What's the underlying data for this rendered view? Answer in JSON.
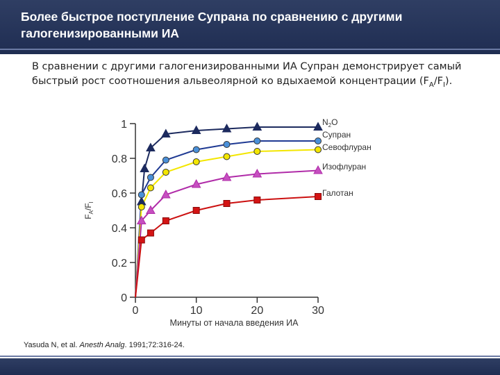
{
  "header": {
    "title": "Более быстрое поступление Супрана по сравнению с другими галогенизированными ИА"
  },
  "intro": {
    "text_part1": "В сравнении с другими галогенизированными ИА Супран демонстрирует самый быстрый рост соотношения альвеолярной ко вдыхаемой концентрации (F",
    "sub_a": "A",
    "slash": "/F",
    "sub_i": "I",
    "text_end": ")."
  },
  "citation": {
    "authors": "Yasuda N, et al. ",
    "journal": "Anesth Analg",
    "rest": ". 1991;72:316-24."
  },
  "chart_data": {
    "type": "line",
    "xlabel": "Минуты от начала введения ИА",
    "ylabel": "FA/FI",
    "ylabel_main": "F",
    "ylabel_sub1": "A",
    "ylabel_mid": "/F",
    "ylabel_sub2": "I",
    "xlim": [
      0,
      30
    ],
    "ylim": [
      0,
      1
    ],
    "x_ticks": [
      0,
      10,
      20,
      30
    ],
    "x_tick_labels": [
      "0",
      "10",
      "20",
      "30"
    ],
    "y_ticks": [
      0,
      0.2,
      0.4,
      0.6,
      0.8,
      1
    ],
    "y_tick_labels": [
      "0",
      "0.2",
      "0.4",
      "0.6",
      "0.8",
      "1"
    ],
    "grid": false,
    "legend_placement": "right",
    "series": [
      {
        "name": "N2O",
        "label_main": "N",
        "label_sub": "2",
        "label_tail": "O",
        "marker": "triangle",
        "color": "#1c2a5e",
        "marker_fill": "#1c2a5e",
        "x": [
          1,
          1.5,
          2.5,
          5,
          10,
          15,
          20,
          30
        ],
        "y": [
          0.55,
          0.74,
          0.86,
          0.94,
          0.96,
          0.97,
          0.98,
          0.98
        ]
      },
      {
        "name": "Супран",
        "label_main": "Супран",
        "label_sub": "",
        "label_tail": "",
        "marker": "circle",
        "color": "#1f3a93",
        "marker_fill": "#4a90d9",
        "x": [
          1,
          2.5,
          5,
          10,
          15,
          20,
          30
        ],
        "y": [
          0.59,
          0.69,
          0.79,
          0.85,
          0.88,
          0.9,
          0.9
        ]
      },
      {
        "name": "Севофлуран",
        "label_main": "Севофлуран",
        "label_sub": "",
        "label_tail": "",
        "marker": "circle",
        "color": "#f3e600",
        "marker_fill": "#f3e600",
        "x": [
          1,
          2.5,
          5,
          10,
          15,
          20,
          30
        ],
        "y": [
          0.52,
          0.63,
          0.72,
          0.78,
          0.81,
          0.84,
          0.85
        ]
      },
      {
        "name": "Изофлуран",
        "label_main": "Изофлуран",
        "label_sub": "",
        "label_tail": "",
        "marker": "triangle",
        "color": "#b02ba8",
        "marker_fill": "#c64fc0",
        "x": [
          1,
          2.5,
          5,
          10,
          15,
          20,
          30
        ],
        "y": [
          0.44,
          0.5,
          0.59,
          0.65,
          0.69,
          0.71,
          0.73
        ]
      },
      {
        "name": "Галотан",
        "label_main": "Галотан",
        "label_sub": "",
        "label_tail": "",
        "marker": "square",
        "color": "#cc1010",
        "marker_fill": "#d41414",
        "x": [
          1,
          2.5,
          5,
          10,
          15,
          20,
          30
        ],
        "y": [
          0.33,
          0.37,
          0.44,
          0.5,
          0.54,
          0.56,
          0.58
        ]
      }
    ]
  }
}
